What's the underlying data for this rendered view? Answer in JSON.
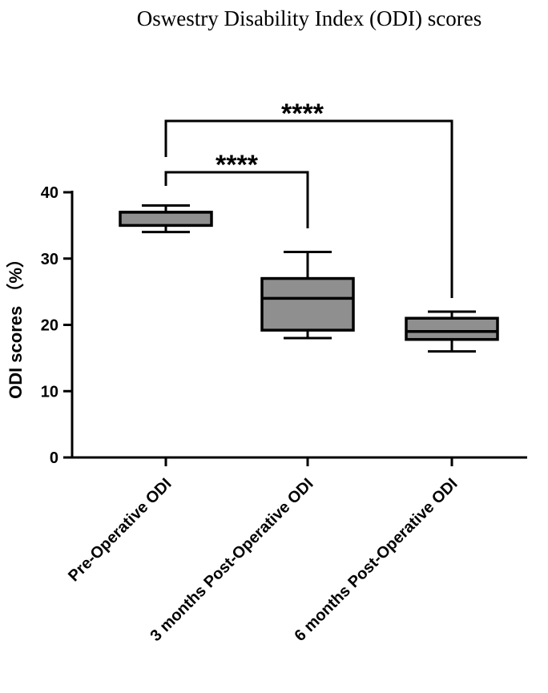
{
  "chart_data": {
    "type": "box",
    "title": "Oswestry Disability Index (ODI) scores",
    "xlabel": "",
    "ylabel": "ODI scores （%）",
    "ylim": [
      0,
      40
    ],
    "yticks": [
      0,
      10,
      20,
      30,
      40
    ],
    "categories": [
      "Pre-Operative ODI",
      "3 months Post-Operative ODI",
      "6 months Post-Operative ODI"
    ],
    "boxes": [
      {
        "category": "Pre-Operative ODI",
        "min": 34,
        "q1": 35,
        "median": 37,
        "q3": 37,
        "max": 38
      },
      {
        "category": "3 months Post-Operative ODI",
        "min": 18,
        "q1": 19.2,
        "median": 24,
        "q3": 27,
        "max": 31
      },
      {
        "category": "6 months Post-Operative ODI",
        "min": 16,
        "q1": 17.8,
        "median": 19,
        "q3": 21,
        "max": 22
      }
    ],
    "box_color": "#8f8f8f",
    "significance": [
      {
        "from": "Pre-Operative ODI",
        "to": "3 months Post-Operative ODI",
        "label": "****"
      },
      {
        "from": "Pre-Operative ODI",
        "to": "6 months Post-Operative ODI",
        "label": "****"
      }
    ],
    "grid": false
  }
}
